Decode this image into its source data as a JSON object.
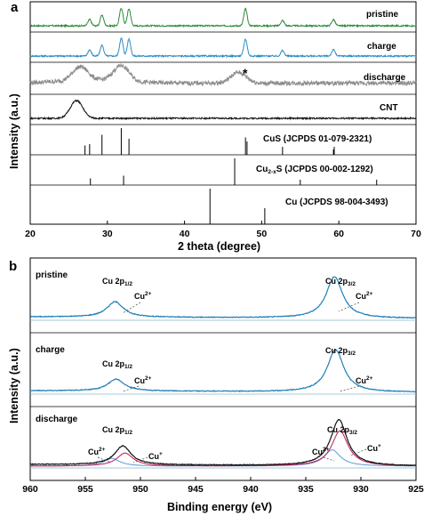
{
  "chart_data": [
    {
      "panel": "a",
      "type": "line",
      "xlabel": "2 theta (degree)",
      "ylabel": "Intensity (a.u.)",
      "xlim": [
        20,
        70
      ],
      "xticks": [
        "20",
        "30",
        "40",
        "50",
        "60",
        "70"
      ],
      "series": [
        {
          "name": "pristine",
          "color": "#2e8b3a",
          "peaks": [
            27.7,
            29.3,
            31.8,
            32.8,
            47.9,
            52.7,
            59.3
          ]
        },
        {
          "name": "charge",
          "color": "#2b8cc4",
          "peaks": [
            27.7,
            29.3,
            31.8,
            32.8,
            47.9,
            52.7,
            59.3
          ]
        },
        {
          "name": "discharge",
          "color": "#8c8c8c",
          "peaks": [
            26.5,
            31.8,
            47.0
          ],
          "annotation": "*"
        },
        {
          "name": "CNT",
          "color": "#111111",
          "peaks": [
            26.0
          ]
        }
      ],
      "references": [
        {
          "name": "CuS (JCPDS 01-079-2321)",
          "lines": [
            27.1,
            27.7,
            29.3,
            31.8,
            32.8,
            47.9,
            48.1,
            52.7,
            59.3,
            59.4
          ]
        },
        {
          "name_prefix": "Cu",
          "name_sub": "2-x",
          "name_suffix": "S (JCPDS 00-002-1292)",
          "lines": [
            27.8,
            32.1,
            46.5,
            55.0,
            64.9
          ]
        },
        {
          "name": "Cu (JCPDS 98-004-3493)",
          "lines": [
            43.3,
            50.4
          ]
        }
      ]
    },
    {
      "panel": "b",
      "type": "line",
      "xlabel": "Binding energy (eV)",
      "ylabel": "Intensity (a.u.)",
      "xlim": [
        960,
        925
      ],
      "xticks": [
        "960",
        "955",
        "950",
        "945",
        "940",
        "935",
        "930",
        "925"
      ],
      "panels": [
        {
          "name": "pristine",
          "peaks": [
            {
              "center": 952.3,
              "height": 0.28
            },
            {
              "center": 932.4,
              "height": 0.75
            }
          ],
          "labels": [
            {
              "main": "Cu 2p",
              "sub": "1/2"
            },
            {
              "main": "Cu",
              "sup": "2+"
            },
            {
              "main": "Cu 2p",
              "sub": "3/2"
            },
            {
              "main": "Cu",
              "sup": "2+"
            }
          ]
        },
        {
          "name": "charge",
          "peaks": [
            {
              "center": 952.2,
              "height": 0.22
            },
            {
              "center": 932.3,
              "height": 0.78
            }
          ],
          "labels": [
            {
              "main": "Cu 2p",
              "sub": "1/2"
            },
            {
              "main": "Cu",
              "sup": "2+"
            },
            {
              "main": "Cu 2p",
              "sub": "3/2"
            },
            {
              "main": "Cu",
              "sup": "2+"
            }
          ]
        },
        {
          "name": "discharge",
          "peaks": [
            {
              "center": 951.6,
              "height": 0.35
            },
            {
              "center": 932.0,
              "height": 0.85
            }
          ],
          "components": [
            {
              "name": "Cu2+",
              "color": "#5b9bd5",
              "peaks": [
                {
                  "center": 952.6,
                  "height": 0.14
                },
                {
                  "center": 932.6,
                  "height": 0.3
                }
              ]
            },
            {
              "name": "Cu+",
              "color": "#c2185b",
              "peaks": [
                {
                  "center": 951.4,
                  "height": 0.24
                },
                {
                  "center": 931.9,
                  "height": 0.65
                }
              ]
            }
          ],
          "labels": [
            {
              "main": "Cu 2p",
              "sub": "1/2"
            },
            {
              "main": "Cu",
              "sup": "2+"
            },
            {
              "main": "Cu",
              "sup": "+"
            },
            {
              "main": "Cu 2p",
              "sub": "3/2"
            },
            {
              "main": "Cu",
              "sup": "2+"
            },
            {
              "main": "Cu",
              "sup": "+"
            }
          ]
        }
      ]
    }
  ]
}
